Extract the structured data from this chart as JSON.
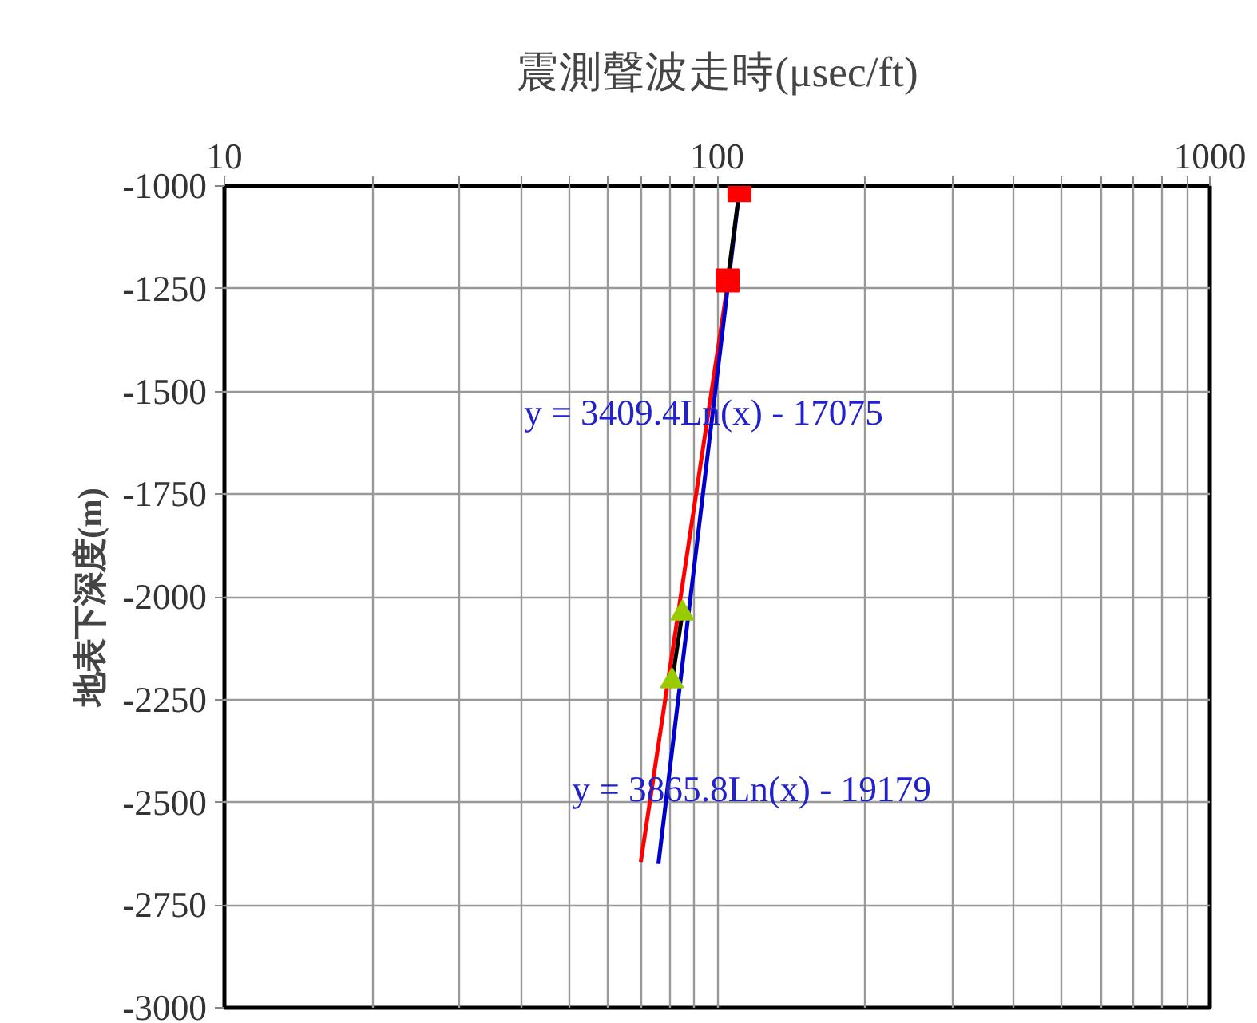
{
  "chart_data": {
    "type": "scatter",
    "title": "震測聲波走時(μsec/ft)",
    "ylabel": "地表下深度(m)",
    "log": "x",
    "grid": true,
    "xlim": [
      10,
      1000
    ],
    "xticks": [
      10,
      {
        "value": 20,
        "label": null
      },
      {
        "value": 30,
        "label": null
      },
      {
        "value": 40,
        "label": null
      },
      {
        "value": 50,
        "label": null
      },
      {
        "value": 60,
        "label": null
      },
      {
        "value": 70,
        "label": null
      },
      {
        "value": 80,
        "label": null
      },
      {
        "value": 90,
        "label": null
      },
      100,
      {
        "value": 200,
        "label": null
      },
      {
        "value": 300,
        "label": null
      },
      {
        "value": 400,
        "label": null
      },
      {
        "value": 500,
        "label": null
      },
      {
        "value": 600,
        "label": null
      },
      {
        "value": 700,
        "label": null
      },
      {
        "value": 800,
        "label": null
      },
      {
        "value": 900,
        "label": null
      },
      1000
    ],
    "ylim": [
      -3000,
      -1000
    ],
    "yticks": [
      -1000,
      -1250,
      -1500,
      -1750,
      -2000,
      -2250,
      -2500,
      -2750,
      -3000
    ],
    "series": [
      {
        "type": "line",
        "color": "#ff0000",
        "x": [
          70,
          105
        ],
        "values": [
          -2645,
          -1240
        ],
        "marker": "none"
      },
      {
        "type": "line",
        "color": "#0000cc",
        "x": [
          76,
          111
        ],
        "values": [
          -2650,
          -1010
        ],
        "marker": "none"
      },
      {
        "type": "line",
        "color": "#000000",
        "x": [
          111,
          105
        ],
        "values": [
          -1010,
          -1230
        ],
        "marker": "none"
      },
      {
        "type": "line",
        "color": "#000000",
        "x": [
          85,
          81
        ],
        "values": [
          -2040,
          -2205
        ],
        "marker": "none"
      },
      {
        "color": "#ff0000",
        "x": [
          111,
          105
        ],
        "values": [
          -1010,
          -1230
        ],
        "marker": "square"
      },
      {
        "color": "#99cc00",
        "x": [
          85,
          81
        ],
        "values": [
          -2040,
          -2205
        ],
        "marker": "triangle"
      }
    ],
    "annotations": [
      "y = 3409.4Ln(x) - 17075",
      "y = 3865.8Ln(x) - 19179"
    ]
  }
}
